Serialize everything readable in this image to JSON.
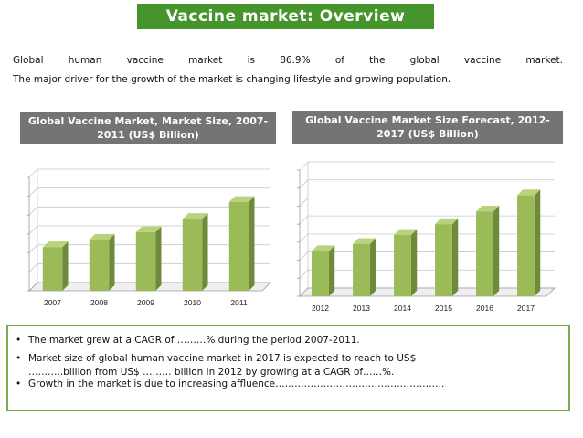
{
  "title": "Vaccine market: Overview",
  "intro": {
    "line1": "Global human vaccine market is 86.9% of the global vaccine market.",
    "line2": "The major driver for the growth of the market is changing lifestyle and growing population."
  },
  "colors": {
    "accent": "#46952c",
    "bar": "#9bbb59",
    "bar_side": "#6f8a3a",
    "title_box": "#747474",
    "border": "#7aae4a"
  },
  "chart_data": [
    {
      "type": "bar",
      "title": "Global Vaccine Market, Market Size, 2007-2011 (US$ Billion)",
      "categories": [
        "2007",
        "2008",
        "2009",
        "2010",
        "2011"
      ],
      "values": [
        23,
        27,
        31,
        38,
        47
      ],
      "ylim": [
        0,
        60
      ],
      "grid": true,
      "xlabel": "",
      "ylabel": ""
    },
    {
      "type": "bar",
      "title": "Global Vaccine Market Size Forecast, 2012-2017 (US$ Billion)",
      "categories": [
        "2012",
        "2013",
        "2014",
        "2015",
        "2016",
        "2017"
      ],
      "values": [
        25,
        29,
        34,
        40,
        47,
        56
      ],
      "ylim": [
        0,
        70
      ],
      "grid": true,
      "xlabel": "",
      "ylabel": ""
    }
  ],
  "summary": {
    "b1": "The market grew at a CAGR of ………% during the period 2007-2011.",
    "b2": "Market size of global human vaccine market in 2017 is expected to reach to US$",
    "b2_cont": "………..billion from US$ ……… billion in 2012 by growing at a CAGR of……%.",
    "b3": "Growth in the market is due to increasing affluence……………………………………………..",
    "bullet": "•"
  }
}
